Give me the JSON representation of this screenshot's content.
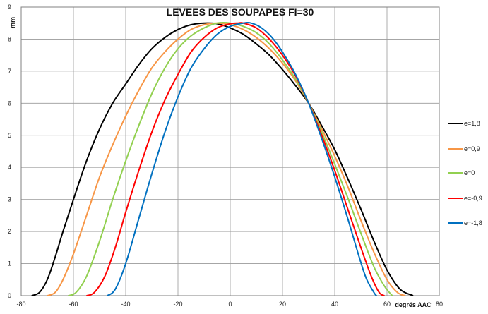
{
  "chart_data": {
    "type": "line",
    "title": "LEVEES DES SOUPAPES FI=30",
    "xlabel": "degrés AAC",
    "ylabel": "mm",
    "xlim": [
      -80,
      80
    ],
    "ylim": [
      0,
      9
    ],
    "xticks": [
      "-80",
      "-60",
      "-40",
      "-20",
      "0",
      "20",
      "40",
      "60",
      "80"
    ],
    "yticks": [
      "0",
      "1",
      "2",
      "3",
      "4",
      "5",
      "6",
      "7",
      "8",
      "9"
    ],
    "grid": true,
    "legend_position": "right",
    "series": [
      {
        "name": "e=1,8",
        "color": "#000000",
        "points": [
          [
            -76,
            0
          ],
          [
            -73,
            0.1
          ],
          [
            -70,
            0.5
          ],
          [
            -67,
            1.2
          ],
          [
            -64,
            2.0
          ],
          [
            -60,
            3.0
          ],
          [
            -55,
            4.2
          ],
          [
            -50,
            5.2
          ],
          [
            -45,
            6.0
          ],
          [
            -40,
            6.6
          ],
          [
            -35,
            7.2
          ],
          [
            -30,
            7.7
          ],
          [
            -25,
            8.05
          ],
          [
            -20,
            8.3
          ],
          [
            -15,
            8.45
          ],
          [
            -10,
            8.5
          ],
          [
            -5,
            8.48
          ],
          [
            0,
            8.35
          ],
          [
            5,
            8.15
          ],
          [
            10,
            7.85
          ],
          [
            15,
            7.5
          ],
          [
            20,
            7.05
          ],
          [
            25,
            6.55
          ],
          [
            30,
            6.0
          ],
          [
            35,
            5.3
          ],
          [
            40,
            4.55
          ],
          [
            45,
            3.65
          ],
          [
            50,
            2.7
          ],
          [
            55,
            1.7
          ],
          [
            60,
            0.8
          ],
          [
            65,
            0.2
          ],
          [
            70,
            0
          ]
        ]
      },
      {
        "name": "e=0,9",
        "color": "#F79646",
        "points": [
          [
            -70,
            0
          ],
          [
            -67,
            0.1
          ],
          [
            -64,
            0.5
          ],
          [
            -60,
            1.3
          ],
          [
            -55,
            2.5
          ],
          [
            -50,
            3.7
          ],
          [
            -45,
            4.7
          ],
          [
            -40,
            5.6
          ],
          [
            -35,
            6.4
          ],
          [
            -30,
            7.1
          ],
          [
            -25,
            7.6
          ],
          [
            -20,
            8.0
          ],
          [
            -15,
            8.3
          ],
          [
            -10,
            8.45
          ],
          [
            -5,
            8.5
          ],
          [
            0,
            8.45
          ],
          [
            5,
            8.3
          ],
          [
            10,
            8.05
          ],
          [
            15,
            7.7
          ],
          [
            20,
            7.25
          ],
          [
            25,
            6.7
          ],
          [
            30,
            6.0
          ],
          [
            35,
            5.2
          ],
          [
            40,
            4.35
          ],
          [
            45,
            3.4
          ],
          [
            50,
            2.35
          ],
          [
            55,
            1.35
          ],
          [
            60,
            0.5
          ],
          [
            64,
            0.1
          ],
          [
            67,
            0
          ]
        ]
      },
      {
        "name": "e=0",
        "color": "#92D050",
        "points": [
          [
            -62,
            0
          ],
          [
            -59,
            0.1
          ],
          [
            -55,
            0.6
          ],
          [
            -50,
            1.7
          ],
          [
            -45,
            3.0
          ],
          [
            -40,
            4.2
          ],
          [
            -35,
            5.3
          ],
          [
            -30,
            6.3
          ],
          [
            -25,
            7.1
          ],
          [
            -20,
            7.7
          ],
          [
            -15,
            8.1
          ],
          [
            -10,
            8.35
          ],
          [
            -5,
            8.5
          ],
          [
            0,
            8.5
          ],
          [
            5,
            8.4
          ],
          [
            10,
            8.2
          ],
          [
            15,
            7.85
          ],
          [
            20,
            7.35
          ],
          [
            25,
            6.75
          ],
          [
            30,
            6.0
          ],
          [
            35,
            5.1
          ],
          [
            40,
            4.1
          ],
          [
            45,
            3.05
          ],
          [
            50,
            1.95
          ],
          [
            55,
            0.9
          ],
          [
            59,
            0.3
          ],
          [
            62,
            0
          ]
        ]
      },
      {
        "name": "e=-0,9",
        "color": "#FF0000",
        "points": [
          [
            -55,
            0
          ],
          [
            -52,
            0.1
          ],
          [
            -48,
            0.6
          ],
          [
            -44,
            1.5
          ],
          [
            -40,
            2.6
          ],
          [
            -35,
            3.9
          ],
          [
            -30,
            5.1
          ],
          [
            -25,
            6.1
          ],
          [
            -20,
            6.9
          ],
          [
            -15,
            7.6
          ],
          [
            -10,
            8.05
          ],
          [
            -5,
            8.35
          ],
          [
            0,
            8.48
          ],
          [
            3,
            8.5
          ],
          [
            5,
            8.5
          ],
          [
            10,
            8.35
          ],
          [
            15,
            8.0
          ],
          [
            20,
            7.5
          ],
          [
            25,
            6.85
          ],
          [
            30,
            6.0
          ],
          [
            35,
            5.0
          ],
          [
            40,
            3.9
          ],
          [
            45,
            2.7
          ],
          [
            50,
            1.5
          ],
          [
            54,
            0.6
          ],
          [
            57,
            0.1
          ],
          [
            59,
            0
          ]
        ]
      },
      {
        "name": "e=-1,8",
        "color": "#0070C0",
        "points": [
          [
            -47,
            0
          ],
          [
            -44,
            0.2
          ],
          [
            -40,
            1.0
          ],
          [
            -35,
            2.4
          ],
          [
            -30,
            3.8
          ],
          [
            -25,
            5.1
          ],
          [
            -20,
            6.2
          ],
          [
            -15,
            7.1
          ],
          [
            -10,
            7.7
          ],
          [
            -5,
            8.15
          ],
          [
            0,
            8.4
          ],
          [
            5,
            8.5
          ],
          [
            8,
            8.5
          ],
          [
            12,
            8.35
          ],
          [
            16,
            8.05
          ],
          [
            20,
            7.6
          ],
          [
            25,
            6.9
          ],
          [
            30,
            6.0
          ],
          [
            35,
            4.9
          ],
          [
            40,
            3.7
          ],
          [
            45,
            2.4
          ],
          [
            49,
            1.3
          ],
          [
            52,
            0.55
          ],
          [
            55,
            0.1
          ],
          [
            56,
            0
          ]
        ]
      }
    ]
  }
}
